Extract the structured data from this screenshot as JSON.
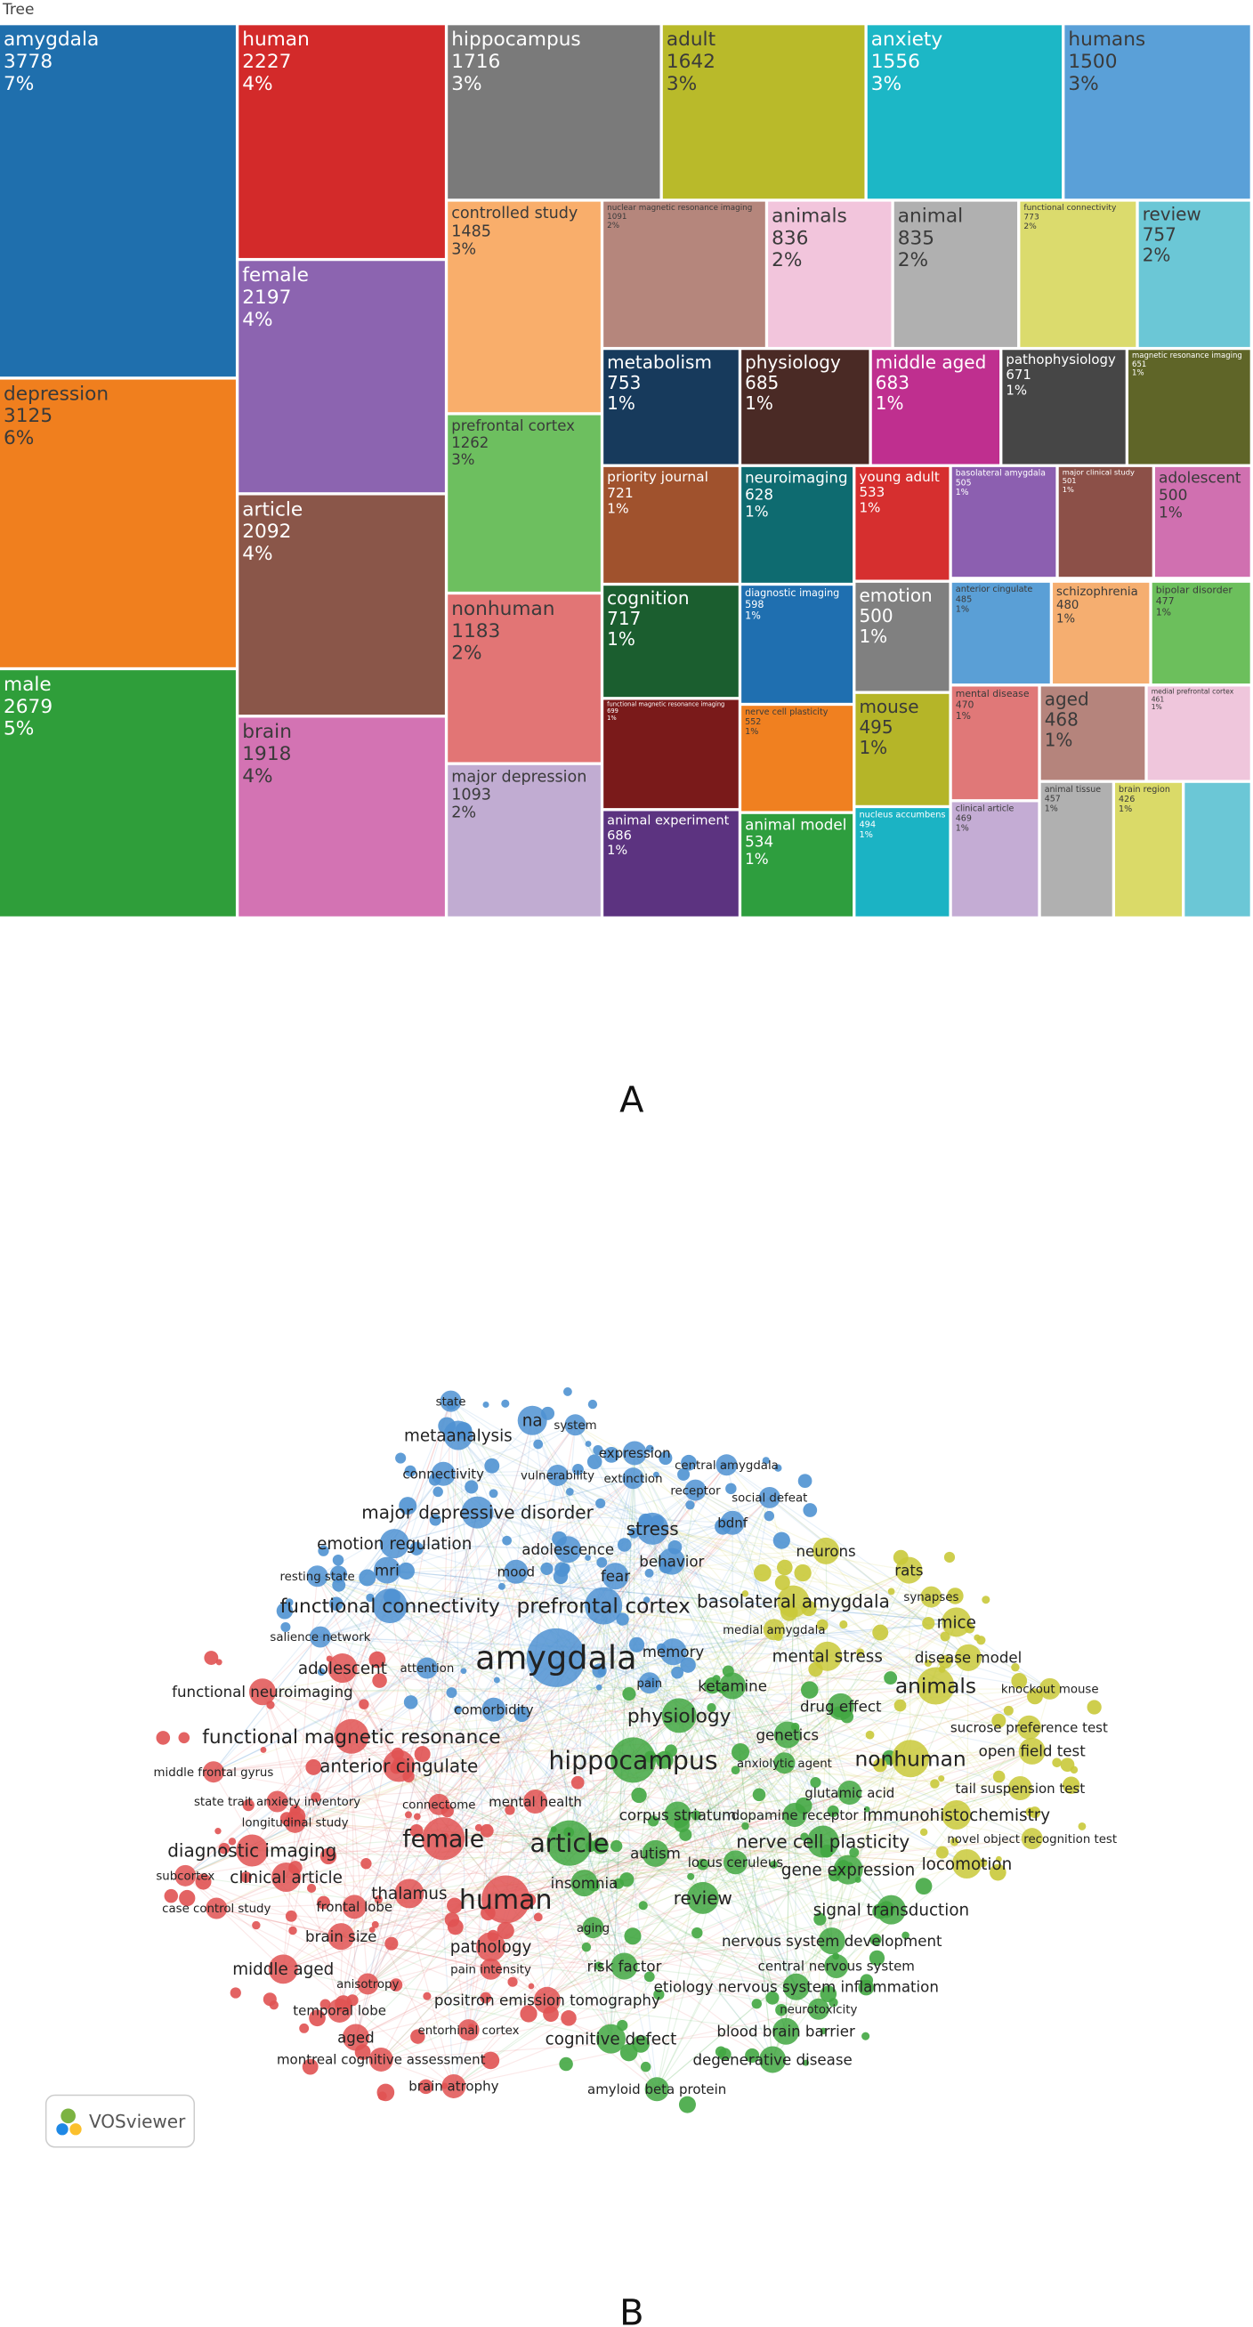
{
  "chart_data": [
    {
      "type": "treemap",
      "title": "Tree",
      "panel_label": "A",
      "categories": [
        "amygdala",
        "depression",
        "male",
        "human",
        "female",
        "article",
        "brain",
        "hippocampus",
        "adult",
        "anxiety",
        "humans",
        "controlled study",
        "prefrontal cortex",
        "nonhuman",
        "major depression",
        "nuclear magnetic resonance imaging",
        "animals",
        "animal",
        "functional connectivity",
        "review",
        "metabolism",
        "physiology",
        "middle aged",
        "pathophysiology",
        "magnetic resonance imaging",
        "priority journal",
        "cognition",
        "functional magnetic resonance imaging",
        "animal experiment",
        "neuroimaging",
        "diagnostic imaging",
        "nerve cell plasticity",
        "animal model",
        "young adult",
        "emotion",
        "mouse",
        "nucleus accumbens",
        "basolateral amygdala",
        "major clinical study",
        "adolescent",
        "anterior cingulate",
        "schizophrenia",
        "bipolar disorder",
        "mental disease",
        "aged",
        "medial prefrontal cortex",
        "clinical article",
        "animal tissue",
        "brain region"
      ],
      "values": [
        3778,
        3125,
        2679,
        2227,
        2197,
        2092,
        1918,
        1716,
        1642,
        1556,
        1500,
        1485,
        1262,
        1183,
        1093,
        1091,
        836,
        835,
        773,
        757,
        753,
        685,
        683,
        671,
        651,
        721,
        717,
        699,
        686,
        628,
        598,
        552,
        534,
        533,
        500,
        495,
        494,
        505,
        501,
        500,
        485,
        480,
        477,
        470,
        468,
        461,
        469,
        457,
        426
      ],
      "share_labels": [
        "7%",
        "6%",
        "5%",
        "4%",
        "4%",
        "4%",
        "4%",
        "3%",
        "3%",
        "3%",
        "3%",
        "3%",
        "3%",
        "2%",
        "2%",
        "2%",
        "2%",
        "2%",
        "2%",
        "2%",
        "1%",
        "1%",
        "1%",
        "1%",
        "1%",
        "1%",
        "1%",
        "1%",
        "1%",
        "1%",
        "1%",
        "1%",
        "1%",
        "1%",
        "1%",
        "1%",
        "1%",
        "1%",
        "1%",
        "1%",
        "1%",
        "1%",
        "1%",
        "1%",
        "1%",
        "1%",
        "1%",
        "1%",
        "1%"
      ],
      "colors": [
        "#1f6fad",
        "#f07f1e",
        "#2f9e3a",
        "#d32a2a",
        "#8c64b0",
        "#8a5649",
        "#d373b3",
        "#7a7a7a",
        "#b9ba2a",
        "#1cb7c6",
        "#5aa0d8",
        "#f9ae6b",
        "#6dbf5f",
        "#e27575",
        "#c1acd2",
        "#b5867c",
        "#f2c5dc",
        "#b0b0b0",
        "#dbdb6d",
        "#6bc7d6",
        "#173a5c",
        "#4a2a25",
        "#bf2f8f",
        "#464646",
        "#5f6528",
        "#a0522d",
        "#1b5e2f",
        "#7a1a1a",
        "#5c3380",
        "#0e6b70",
        "#1f6fb0",
        "#f08020",
        "#2e9e3e",
        "#d62f2f",
        "#808080",
        "#b5b528",
        "#1bb3c4",
        "#8c5fb0",
        "#8c5048",
        "#d070b0",
        "#5a9fd6",
        "#f5ae70",
        "#6cbf5c",
        "#e07878",
        "#b5847c",
        "#efc6dc",
        "#c4acd4",
        "#b0b0b0",
        "#dada68"
      ]
    },
    {
      "type": "network",
      "panel_label": "B",
      "logo_text": "VOSviewer",
      "clusters": [
        {
          "color": "#4f92d2",
          "labels": [
            "state",
            "na",
            "system",
            "metaanalysis",
            "expression",
            "connectivity",
            "vulnerability",
            "extinction",
            "central amygdala",
            "receptor",
            "social defeat",
            "major depressive disorder",
            "stress",
            "bdnf",
            "emotion regulation",
            "adolescence",
            "mri",
            "mood",
            "fear",
            "behavior",
            "resting state",
            "functional connectivity",
            "prefrontal cortex",
            "salience network",
            "amygdala",
            "memory",
            "attention",
            "pain",
            "comorbidity"
          ]
        },
        {
          "color": "#e05252",
          "labels": [
            "adolescent",
            "functional neuroimaging",
            "functional magnetic resonance",
            "anterior cingulate",
            "middle frontal gyrus",
            "state trait anxiety inventory",
            "connectome",
            "mental health",
            "longitudinal study",
            "female",
            "diagnostic imaging",
            "subcortex",
            "clinical article",
            "thalamus",
            "human",
            "case control study",
            "frontal lobe",
            "brain size",
            "pathology",
            "middle aged",
            "pain intensity",
            "anisotropy",
            "positron emission tomography",
            "temporal lobe",
            "entorhinal cortex",
            "aged",
            "montreal cognitive assessment",
            "brain atrophy"
          ]
        },
        {
          "color": "#42a742",
          "labels": [
            "hippocampus",
            "article",
            "corpus striatum",
            "autism",
            "insomnia",
            "review",
            "aging",
            "risk factor",
            "cognitive defect",
            "dopamine receptor",
            "nerve cell plasticity",
            "locus ceruleus",
            "gene expression",
            "signal transduction",
            "nervous system development",
            "central nervous system",
            "etiology nervous system inflammation",
            "neurotoxicity",
            "blood brain barrier",
            "degenerative disease",
            "amyloid beta protein",
            "genetics",
            "anxiolytic agent",
            "glutamic acid",
            "physiology",
            "ketamine",
            "drug effect"
          ]
        },
        {
          "color": "#c9c93a",
          "labels": [
            "neurons",
            "rats",
            "synapses",
            "basolateral amygdala",
            "medial amygdala",
            "mice",
            "mental stress",
            "disease model",
            "animals",
            "knockout mouse",
            "sucrose preference test",
            "nonhuman",
            "open field test",
            "tail suspension test",
            "immunohistochemistry",
            "novel object recognition test",
            "locomotion"
          ]
        }
      ]
    }
  ]
}
